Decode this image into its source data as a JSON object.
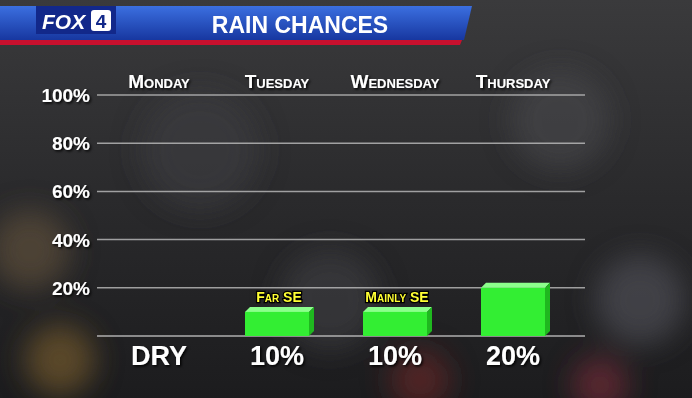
{
  "chart_data": {
    "type": "bar",
    "title": "RAIN CHANCES",
    "logo": [
      "FOX",
      "4"
    ],
    "categories": [
      "Monday",
      "Tuesday",
      "Wednesday",
      "Thursday"
    ],
    "values": [
      0,
      10,
      10,
      20
    ],
    "value_labels": [
      "DRY",
      "10%",
      "10%",
      "20%"
    ],
    "data_labels": true,
    "color": "#33ee33",
    "annotations": [
      {
        "category": "Tuesday",
        "text": "Far SE"
      },
      {
        "category": "Wednesday",
        "text": "Mainly SE"
      }
    ],
    "ylim": [
      0,
      100
    ],
    "yticks": [
      {
        "value": 20,
        "label": "20%"
      },
      {
        "value": 40,
        "label": "40%"
      },
      {
        "value": 60,
        "label": "60%"
      },
      {
        "value": 80,
        "label": "80%"
      },
      {
        "value": 100,
        "label": "100%"
      }
    ],
    "grid": true
  }
}
